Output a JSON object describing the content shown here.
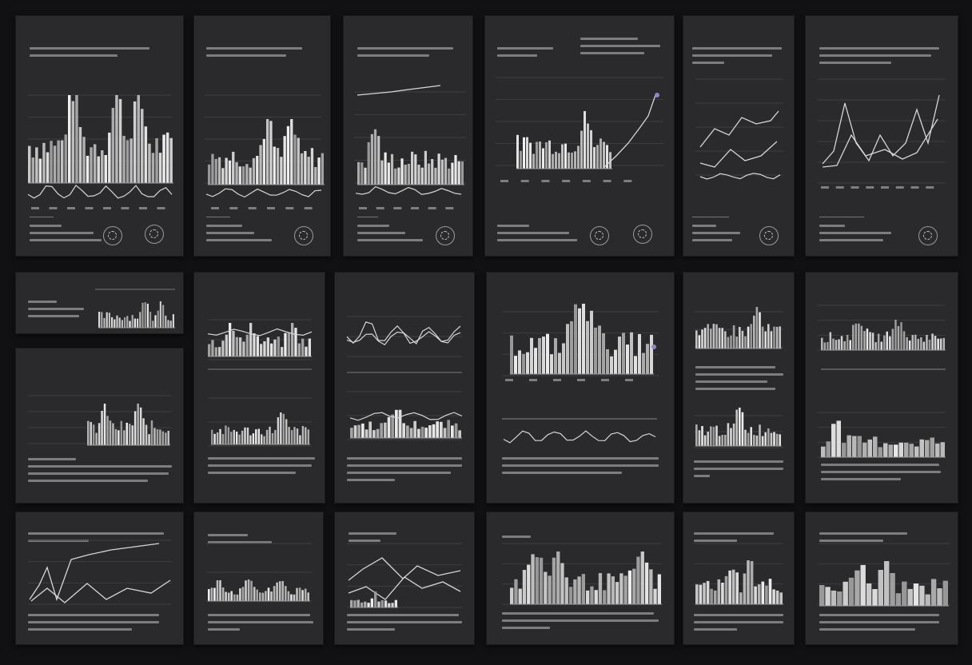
{
  "board": {
    "background": "#111113",
    "card_color": "#2a2a2c",
    "bar_color": "#cfcfcf",
    "line_color": "#d6d6d6",
    "accent_color": "#8f86c8"
  },
  "cards": [
    {
      "id": "r1c1",
      "title": "",
      "chart": {
        "type": "bar"
      }
    },
    {
      "id": "r1c2",
      "title": "",
      "chart": {
        "type": "bar"
      }
    },
    {
      "id": "r1c3",
      "title": "",
      "chart": {
        "type": "bar"
      }
    },
    {
      "id": "r1c4",
      "title": "",
      "chart": {
        "type": "bar+line"
      }
    },
    {
      "id": "r1c5",
      "title": "",
      "chart": {
        "type": "line"
      }
    },
    {
      "id": "r1c6",
      "title": "",
      "chart": {
        "type": "line"
      }
    },
    {
      "id": "r2c1a",
      "title": "",
      "chart": {
        "type": "bar"
      }
    },
    {
      "id": "r2c1b",
      "title": "",
      "chart": {
        "type": "bar"
      }
    },
    {
      "id": "r2c2",
      "title": "",
      "chart": {
        "type": "bar"
      }
    },
    {
      "id": "r2c3",
      "title": "",
      "chart": {
        "type": "line+bar"
      }
    },
    {
      "id": "r2c4",
      "title": "",
      "chart": {
        "type": "bar+line"
      }
    },
    {
      "id": "r2c5",
      "title": "",
      "chart": {
        "type": "bar"
      }
    },
    {
      "id": "r2c6",
      "title": "",
      "chart": {
        "type": "bar"
      }
    },
    {
      "id": "r3c1",
      "title": "",
      "chart": {
        "type": "line"
      }
    },
    {
      "id": "r3c2",
      "title": "",
      "chart": {
        "type": "area"
      }
    },
    {
      "id": "r3c3",
      "title": "",
      "chart": {
        "type": "line"
      }
    },
    {
      "id": "r3c4",
      "title": "",
      "chart": {
        "type": "bar"
      }
    },
    {
      "id": "r3c5",
      "title": "",
      "chart": {
        "type": "bar"
      }
    },
    {
      "id": "r3c6",
      "title": "",
      "chart": {
        "type": "bar"
      }
    }
  ]
}
